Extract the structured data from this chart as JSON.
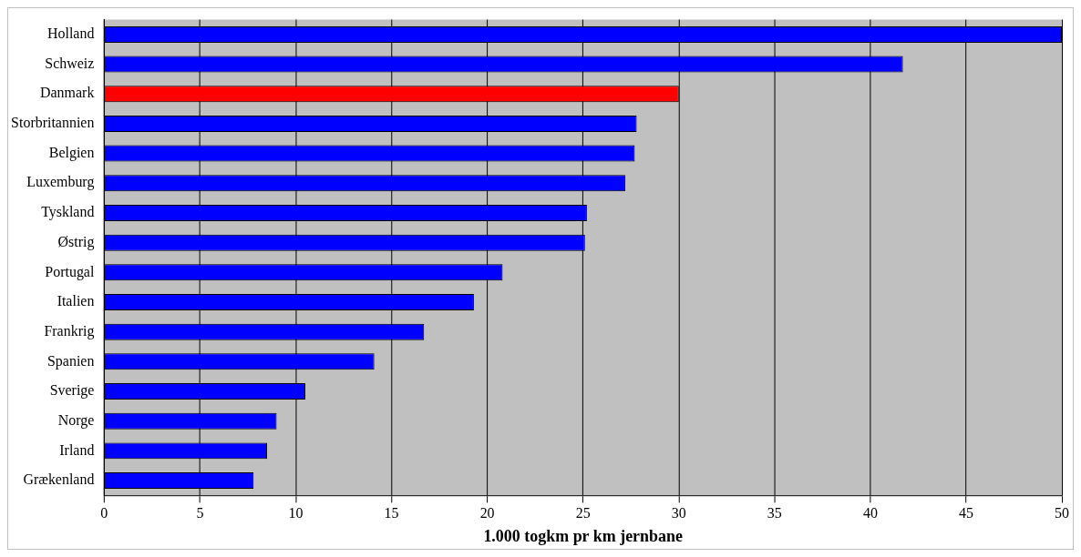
{
  "chart_data": {
    "type": "bar",
    "orientation": "horizontal",
    "xlabel": "1.000 togkm pr km jernbane",
    "categories": [
      "Holland",
      "Schweiz",
      "Danmark",
      "Storbritannien",
      "Belgien",
      "Luxemburg",
      "Tyskland",
      "Østrig",
      "Portugal",
      "Italien",
      "Frankrig",
      "Spanien",
      "Sverige",
      "Norge",
      "Irland",
      "Grækenland"
    ],
    "values": [
      50,
      41.7,
      30,
      27.8,
      27.7,
      27.2,
      25.2,
      25.1,
      20.8,
      19.3,
      16.7,
      14.1,
      10.5,
      9,
      8.5,
      7.8
    ],
    "colors": [
      "#0000ff",
      "#0000ff",
      "#ff0000",
      "#0000ff",
      "#0000ff",
      "#0000ff",
      "#0000ff",
      "#0000ff",
      "#0000ff",
      "#0000ff",
      "#0000ff",
      "#0000ff",
      "#0000ff",
      "#0000ff",
      "#0000ff",
      "#0000ff"
    ],
    "xlim": [
      0,
      50
    ],
    "xticks": [
      0,
      5,
      10,
      15,
      20,
      25,
      30,
      35,
      40,
      45,
      50
    ],
    "grid": "x",
    "legend": false
  }
}
